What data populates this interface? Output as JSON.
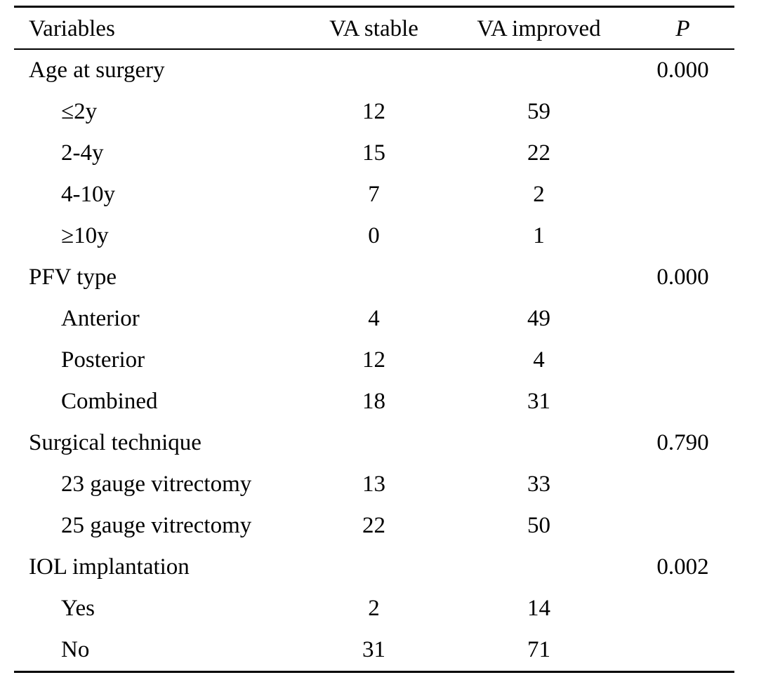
{
  "table": {
    "headers": {
      "variables": "Variables",
      "va_stable": "VA stable",
      "va_improved": "VA improved",
      "p": "P"
    },
    "rows": [
      {
        "label": "Age at surgery",
        "stable": "",
        "improved": "",
        "p": "0.000"
      },
      {
        "label": "≤2y",
        "stable": "12",
        "improved": "59",
        "p": ""
      },
      {
        "label": "2-4y",
        "stable": "15",
        "improved": "22",
        "p": ""
      },
      {
        "label": "4-10y",
        "stable": "7",
        "improved": "2",
        "p": ""
      },
      {
        "label": "≥10y",
        "stable": "0",
        "improved": "1",
        "p": ""
      },
      {
        "label": "PFV type",
        "stable": "",
        "improved": "",
        "p": "0.000"
      },
      {
        "label": "Anterior",
        "stable": "4",
        "improved": "49",
        "p": ""
      },
      {
        "label": "Posterior",
        "stable": "12",
        "improved": "4",
        "p": ""
      },
      {
        "label": "Combined",
        "stable": "18",
        "improved": "31",
        "p": ""
      },
      {
        "label": "Surgical technique",
        "stable": "",
        "improved": "",
        "p": "0.790"
      },
      {
        "label": "23 gauge vitrectomy",
        "stable": "13",
        "improved": "33",
        "p": ""
      },
      {
        "label": "25 gauge vitrectomy",
        "stable": "22",
        "improved": "50",
        "p": ""
      },
      {
        "label": "IOL implantation",
        "stable": "",
        "improved": "",
        "p": "0.002"
      },
      {
        "label": "Yes",
        "stable": "2",
        "improved": "14",
        "p": ""
      },
      {
        "label": "No",
        "stable": "31",
        "improved": "71",
        "p": ""
      }
    ]
  }
}
